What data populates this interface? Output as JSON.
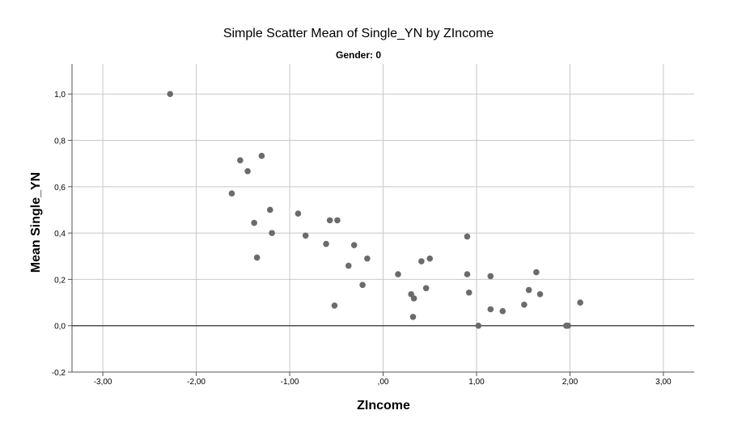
{
  "chart_data": {
    "type": "scatter",
    "title": "Simple Scatter Mean of Single_YN by ZIncome",
    "subtitle": "Gender: 0",
    "xlabel": "ZIncome",
    "ylabel": "Mean Single_YN",
    "xlim": [
      -3.33,
      3.33
    ],
    "ylim": [
      -0.2,
      1.13
    ],
    "x_ticks": [
      -3,
      -2,
      -1,
      0,
      1,
      2,
      3
    ],
    "x_tick_labels": [
      "-3,00",
      "-2,00",
      "-1,00",
      ",00",
      "1,00",
      "2,00",
      "3,00"
    ],
    "y_ticks": [
      -0.2,
      0,
      0.2,
      0.4,
      0.6,
      0.8,
      1.0
    ],
    "y_tick_labels": [
      "-0,2",
      "0,0",
      "0,2",
      "0,4",
      "0,6",
      "0,8",
      "1,0"
    ],
    "grid": true,
    "reference_line_y": 0,
    "colors": {
      "point": "#6b6b6b",
      "grid": "#c8c8c8",
      "axis": "#555555",
      "reference_line": "#444444",
      "text": "#000000"
    },
    "points": [
      {
        "x": -2.28,
        "y": 1.0
      },
      {
        "x": -1.53,
        "y": 0.714
      },
      {
        "x": -1.45,
        "y": 0.667
      },
      {
        "x": -1.3,
        "y": 0.733
      },
      {
        "x": -1.62,
        "y": 0.571
      },
      {
        "x": -1.21,
        "y": 0.5
      },
      {
        "x": -1.38,
        "y": 0.444
      },
      {
        "x": -1.19,
        "y": 0.4
      },
      {
        "x": -1.35,
        "y": 0.294
      },
      {
        "x": -0.91,
        "y": 0.484
      },
      {
        "x": -0.83,
        "y": 0.389
      },
      {
        "x": -0.57,
        "y": 0.455
      },
      {
        "x": -0.49,
        "y": 0.455
      },
      {
        "x": -0.61,
        "y": 0.353
      },
      {
        "x": -0.31,
        "y": 0.348
      },
      {
        "x": -0.37,
        "y": 0.259
      },
      {
        "x": -0.17,
        "y": 0.29
      },
      {
        "x": -0.22,
        "y": 0.176
      },
      {
        "x": -0.52,
        "y": 0.087
      },
      {
        "x": 0.16,
        "y": 0.222
      },
      {
        "x": 0.3,
        "y": 0.136
      },
      {
        "x": 0.33,
        "y": 0.118
      },
      {
        "x": 0.32,
        "y": 0.038
      },
      {
        "x": 0.41,
        "y": 0.278
      },
      {
        "x": 0.5,
        "y": 0.29
      },
      {
        "x": 0.46,
        "y": 0.162
      },
      {
        "x": 0.9,
        "y": 0.385
      },
      {
        "x": 0.9,
        "y": 0.222
      },
      {
        "x": 0.92,
        "y": 0.143
      },
      {
        "x": 1.02,
        "y": 0.0
      },
      {
        "x": 1.15,
        "y": 0.214
      },
      {
        "x": 1.15,
        "y": 0.071
      },
      {
        "x": 1.28,
        "y": 0.063
      },
      {
        "x": 1.51,
        "y": 0.091
      },
      {
        "x": 1.56,
        "y": 0.154
      },
      {
        "x": 1.64,
        "y": 0.231
      },
      {
        "x": 1.68,
        "y": 0.136
      },
      {
        "x": 1.96,
        "y": 0.0
      },
      {
        "x": 1.98,
        "y": 0.0
      },
      {
        "x": 2.11,
        "y": 0.1
      }
    ]
  }
}
